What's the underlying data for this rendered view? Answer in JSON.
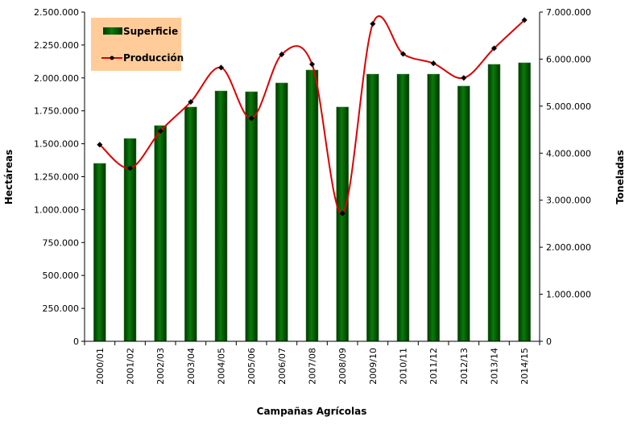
{
  "chart_data": {
    "type": "bar+line",
    "title": "",
    "xlabel": "Campañas Agrícolas",
    "ylabel": "Hectáreas",
    "y2label": "Toneladas",
    "ylim": [
      0,
      2500000
    ],
    "y2lim": [
      0,
      7000000
    ],
    "yticks": [
      "0",
      "250.000",
      "500.000",
      "750.000",
      "1.000.000",
      "1.250.000",
      "1.500.000",
      "1.750.000",
      "2.000.000",
      "2.250.000",
      "2.500.000"
    ],
    "y2ticks": [
      "0",
      "1.000.000",
      "2.000.000",
      "3.000.000",
      "4.000.000",
      "5.000.000",
      "6.000.000",
      "7.000.000"
    ],
    "categories": [
      "2000/01",
      "2001/02",
      "2002/03",
      "2003/04",
      "2004/05",
      "2005/06",
      "2006/07",
      "2007/08",
      "2008/09",
      "2009/10",
      "2010/11",
      "2011/12",
      "2012/13",
      "2013/14",
      "2014/15"
    ],
    "legend_position": "top-left",
    "grid": false,
    "series": [
      {
        "name": "Superficie",
        "type": "bar",
        "axis": "left",
        "color": "#006600",
        "values": [
          1351000,
          1540000,
          1638000,
          1779000,
          1901000,
          1895000,
          1962000,
          2060000,
          1779000,
          2029000,
          2029000,
          2029000,
          1938000,
          2103000,
          2115000
        ]
      },
      {
        "name": "Producción",
        "type": "line",
        "axis": "right",
        "color": "#DD0000",
        "marker_color": "#000000",
        "values": [
          4180000,
          3680000,
          4470000,
          5090000,
          5820000,
          4740000,
          6100000,
          5890000,
          2720000,
          6750000,
          6110000,
          5910000,
          5600000,
          6230000,
          6830000
        ]
      }
    ],
    "legend_background": "#FFCC99"
  }
}
